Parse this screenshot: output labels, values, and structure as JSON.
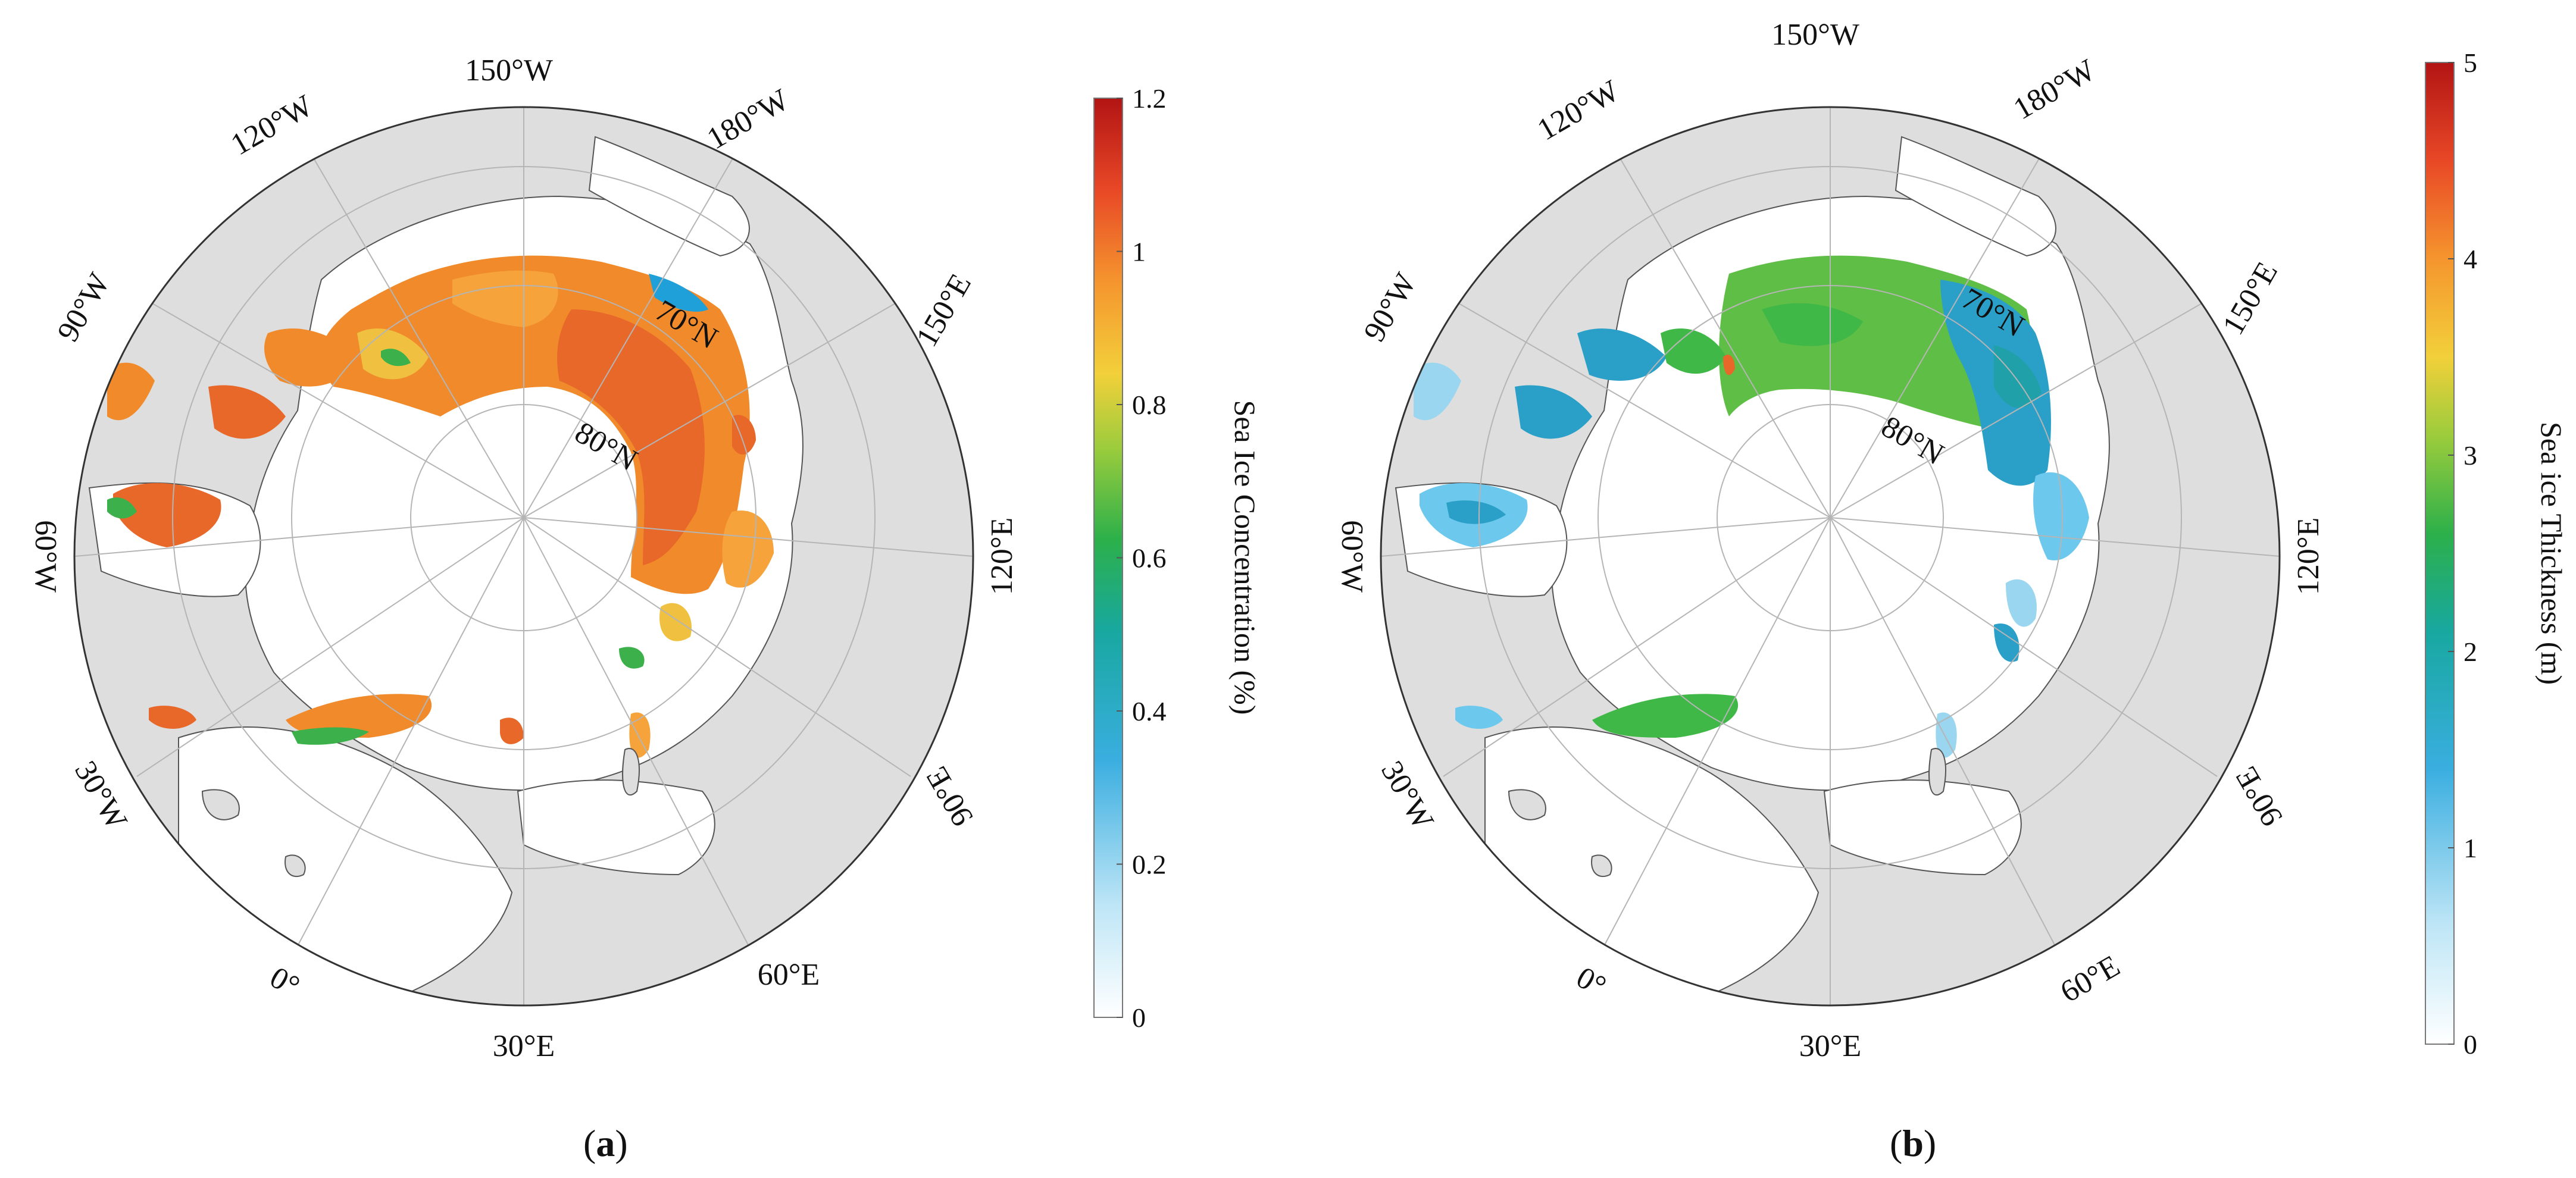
{
  "colors": {
    "land": "#dedede",
    "ocean": "#ffffff",
    "grid": "#b5b5b5",
    "coast": "#555555"
  },
  "panels": [
    {
      "id": "a",
      "caption_open": "(",
      "caption_letter": "a",
      "caption_close": ")",
      "lon_labels": [
        "150°W",
        "180°W",
        "150°E",
        "120°E",
        "90°E",
        "60°E",
        "30°E",
        "0°",
        "30°W",
        "60°W",
        "90°W",
        "120°W"
      ],
      "lat_labels": [
        "70°N",
        "80°N"
      ],
      "colorbar": {
        "title": "Sea Ice Concentration (%)",
        "ticks": [
          "0",
          "0.2",
          "0.4",
          "0.6",
          "0.8",
          "1",
          "1.2"
        ],
        "range": [
          0,
          1.2
        ]
      },
      "ice_palette": [
        "#f08a2a",
        "#f5a33a",
        "#e8682a",
        "#f0c040",
        "#3cb04a",
        "#1fa0d8"
      ]
    },
    {
      "id": "b",
      "caption_open": "(",
      "caption_letter": "b",
      "caption_close": ")",
      "lon_labels": [
        "150°W",
        "180°W",
        "150°E",
        "120°E",
        "90°E",
        "60°E",
        "30°E",
        "0°",
        "30°W",
        "60°W",
        "90°W",
        "120°W"
      ],
      "lat_labels": [
        "70°N",
        "80°N"
      ],
      "colorbar": {
        "title": "Sea ice Thickness (m)",
        "ticks": [
          "0",
          "1",
          "2",
          "3",
          "4",
          "5"
        ],
        "range": [
          0,
          5
        ]
      },
      "ice_palette": [
        "#5fbe45",
        "#2aa0c8",
        "#6cc8ec",
        "#20a0a8",
        "#9ad6f0",
        "#40b848"
      ]
    }
  ]
}
